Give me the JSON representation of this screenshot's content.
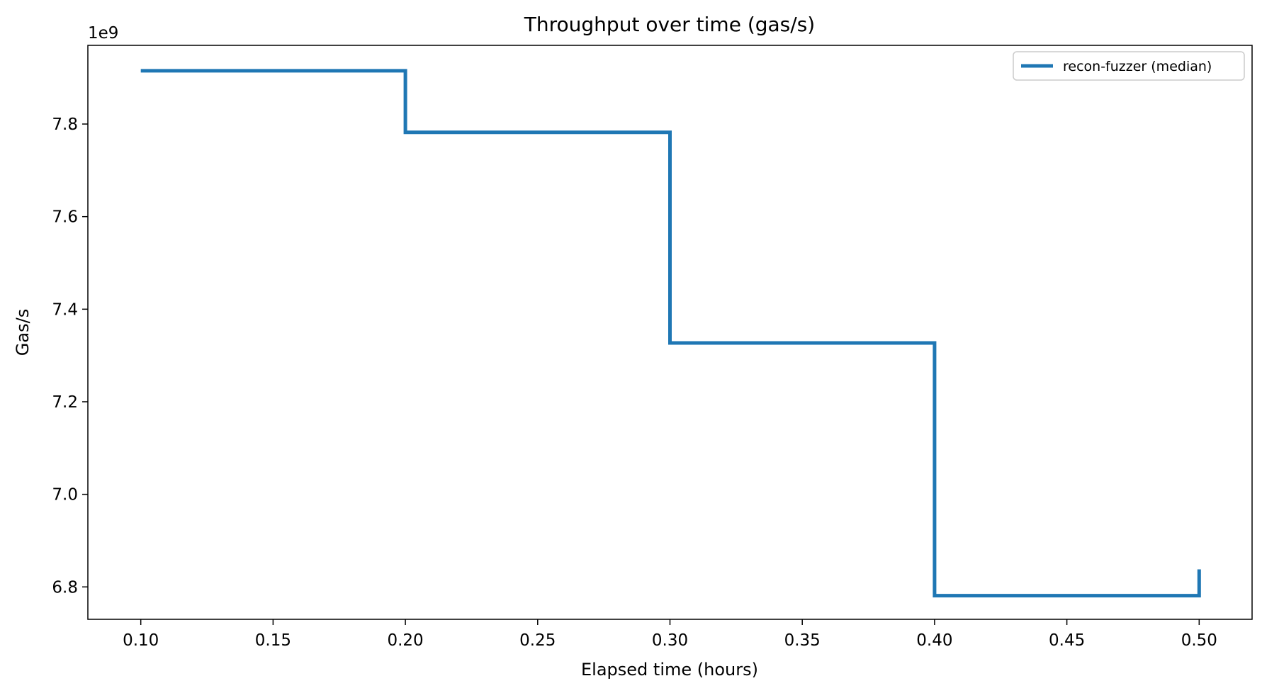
{
  "chart_data": {
    "type": "line",
    "title": "Throughput over time (gas/s)",
    "xlabel": "Elapsed time (hours)",
    "ylabel": "Gas/s",
    "y_offset_label": "1e9",
    "xlim": [
      0.08,
      0.52
    ],
    "ylim": [
      6.73,
      7.97
    ],
    "xticks": [
      0.1,
      0.15,
      0.2,
      0.25,
      0.3,
      0.35,
      0.4,
      0.45,
      0.5
    ],
    "xtick_labels": [
      "0.10",
      "0.15",
      "0.20",
      "0.25",
      "0.30",
      "0.35",
      "0.40",
      "0.45",
      "0.50"
    ],
    "yticks": [
      6.8,
      7.0,
      7.2,
      7.4,
      7.6,
      7.8
    ],
    "ytick_labels": [
      "6.8",
      "7.0",
      "7.2",
      "7.4",
      "7.6",
      "7.8"
    ],
    "grid": false,
    "legend_position": "top-right",
    "series": [
      {
        "name": "recon-fuzzer (median)",
        "color": "#1f77b4",
        "step": "post",
        "x": [
          0.1,
          0.2,
          0.3,
          0.4,
          0.5
        ],
        "y": [
          7.915,
          7.782,
          7.327,
          6.781,
          6.838
        ]
      }
    ]
  }
}
